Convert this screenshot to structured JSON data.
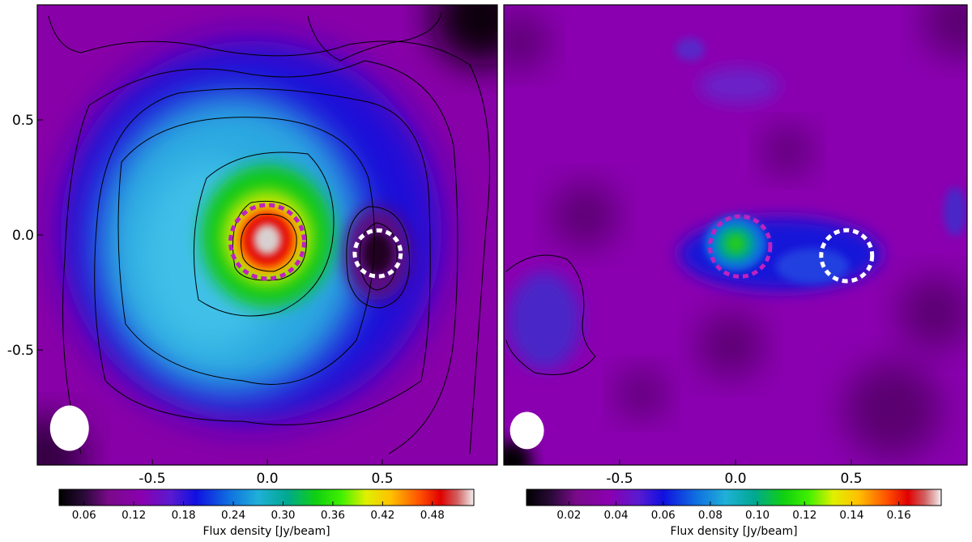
{
  "chart_data": [
    {
      "type": "heatmap",
      "xlabel": "",
      "ylabel": "",
      "x_ticks": [
        "-0.5",
        "0.0",
        "0.5"
      ],
      "y_ticks": [
        "0.5",
        "0.0",
        "-0.5"
      ],
      "x_tick_values": [
        -0.5,
        0.0,
        0.5
      ],
      "y_tick_values": [
        0.5,
        0.0,
        -0.5
      ],
      "xlim": [
        -1.0,
        1.0
      ],
      "ylim": [
        -1.0,
        1.0
      ],
      "colormap": "gist_ncar",
      "colorbar": {
        "label": "Flux density [Jy/beam]",
        "ticks": [
          "0.06",
          "0.12",
          "0.18",
          "0.24",
          "0.30",
          "0.36",
          "0.42",
          "0.48"
        ],
        "tick_values": [
          0.06,
          0.12,
          0.18,
          0.24,
          0.3,
          0.36,
          0.42,
          0.48
        ],
        "range": [
          0.03,
          0.53
        ]
      },
      "peak_position": [
        0.0,
        -0.02
      ],
      "markers": [
        {
          "kind": "dashed-circle",
          "color": "#c020c0",
          "center": [
            0.0,
            -0.03
          ],
          "radius": 0.16
        },
        {
          "kind": "dashed-circle",
          "color": "#ffffff",
          "center": [
            0.48,
            -0.08
          ],
          "radius": 0.1
        }
      ],
      "beam_center": [
        -0.86,
        -0.84
      ]
    },
    {
      "type": "heatmap",
      "xlabel": "",
      "ylabel": "",
      "x_ticks": [
        "-0.5",
        "0.0",
        "0.5"
      ],
      "x_tick_values": [
        -0.5,
        0.0,
        0.5
      ],
      "xlim": [
        -1.0,
        1.0
      ],
      "ylim": [
        -1.0,
        1.0
      ],
      "colormap": "gist_ncar",
      "colorbar": {
        "label": "Flux density [Jy/beam]",
        "ticks": [
          "0.02",
          "0.04",
          "0.06",
          "0.08",
          "0.10",
          "0.12",
          "0.14",
          "0.16"
        ],
        "tick_values": [
          0.02,
          0.04,
          0.06,
          0.08,
          0.1,
          0.12,
          0.14,
          0.16
        ],
        "range": [
          0.002,
          0.178
        ]
      },
      "peak_position": [
        0.0,
        -0.03
      ],
      "markers": [
        {
          "kind": "dashed-circle",
          "color": "#c020c0",
          "center": [
            0.02,
            -0.05
          ],
          "radius": 0.13
        },
        {
          "kind": "dashed-circle",
          "color": "#ffffff",
          "center": [
            0.48,
            -0.09
          ],
          "radius": 0.11
        }
      ],
      "beam_center": [
        -0.9,
        -0.85
      ]
    }
  ]
}
